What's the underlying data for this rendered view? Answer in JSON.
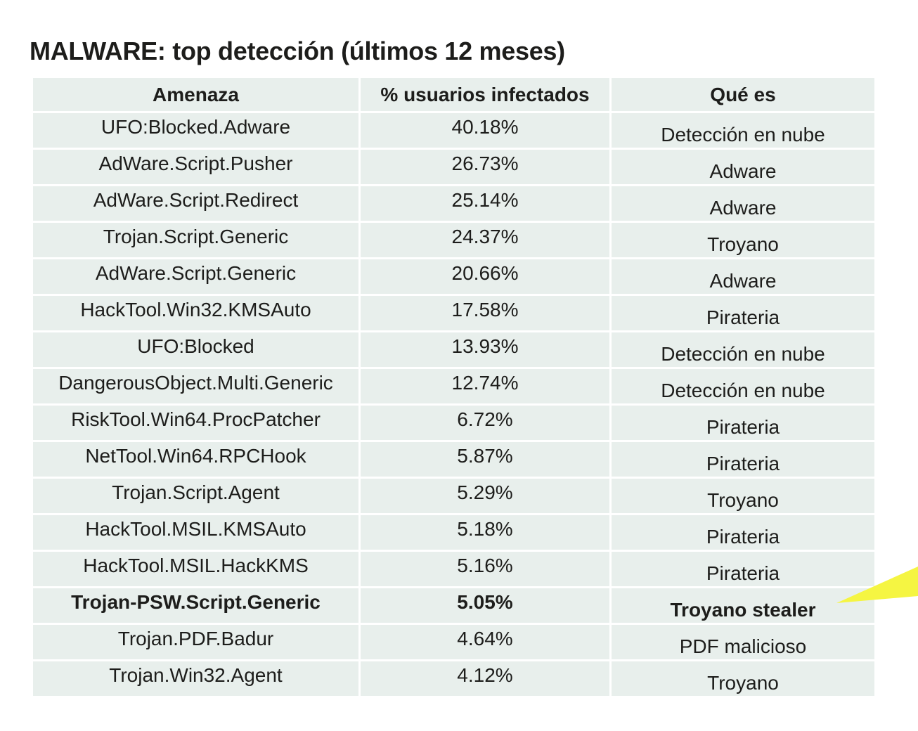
{
  "title": "MALWARE: top detección (últimos 12 meses)",
  "headers": [
    "Amenaza",
    "% usuarios infectados",
    "Qué es"
  ],
  "rows": [
    {
      "threat": "UFO:Blocked.Adware",
      "pct": "40.18%",
      "kind": "Detección en nube"
    },
    {
      "threat": "AdWare.Script.Pusher",
      "pct": "26.73%",
      "kind": "Adware"
    },
    {
      "threat": "AdWare.Script.Redirect",
      "pct": "25.14%",
      "kind": "Adware"
    },
    {
      "threat": "Trojan.Script.Generic",
      "pct": "24.37%",
      "kind": "Troyano"
    },
    {
      "threat": "AdWare.Script.Generic",
      "pct": "20.66%",
      "kind": "Adware"
    },
    {
      "threat": "HackTool.Win32.KMSAuto",
      "pct": "17.58%",
      "kind": "Pirateria"
    },
    {
      "threat": "UFO:Blocked",
      "pct": "13.93%",
      "kind": "Detección en nube"
    },
    {
      "threat": "DangerousObject.Multi.Generic",
      "pct": "12.74%",
      "kind": "Detección en nube"
    },
    {
      "threat": "RiskTool.Win64.ProcPatcher",
      "pct": "6.72%",
      "kind": "Pirateria"
    },
    {
      "threat": "NetTool.Win64.RPCHook",
      "pct": "5.87%",
      "kind": "Pirateria"
    },
    {
      "threat": "Trojan.Script.Agent",
      "pct": "5.29%",
      "kind": "Troyano"
    },
    {
      "threat": "HackTool.MSIL.KMSAuto",
      "pct": "5.18%",
      "kind": "Pirateria"
    },
    {
      "threat": "HackTool.MSIL.HackKMS",
      "pct": "5.16%",
      "kind": "Pirateria"
    },
    {
      "threat": "Trojan-PSW.Script.Generic",
      "pct": "5.05%",
      "kind": "Troyano stealer"
    },
    {
      "threat": "Trojan.PDF.Badur",
      "pct": "4.64%",
      "kind": "PDF malicioso"
    },
    {
      "threat": "Trojan.Win32.Agent",
      "pct": "4.12%",
      "kind": "Troyano"
    }
  ],
  "highlight_row_index": 13,
  "colors": {
    "cell_background": "#e8efec",
    "text": "#1d1d1b",
    "arrow": "#f5f542"
  }
}
